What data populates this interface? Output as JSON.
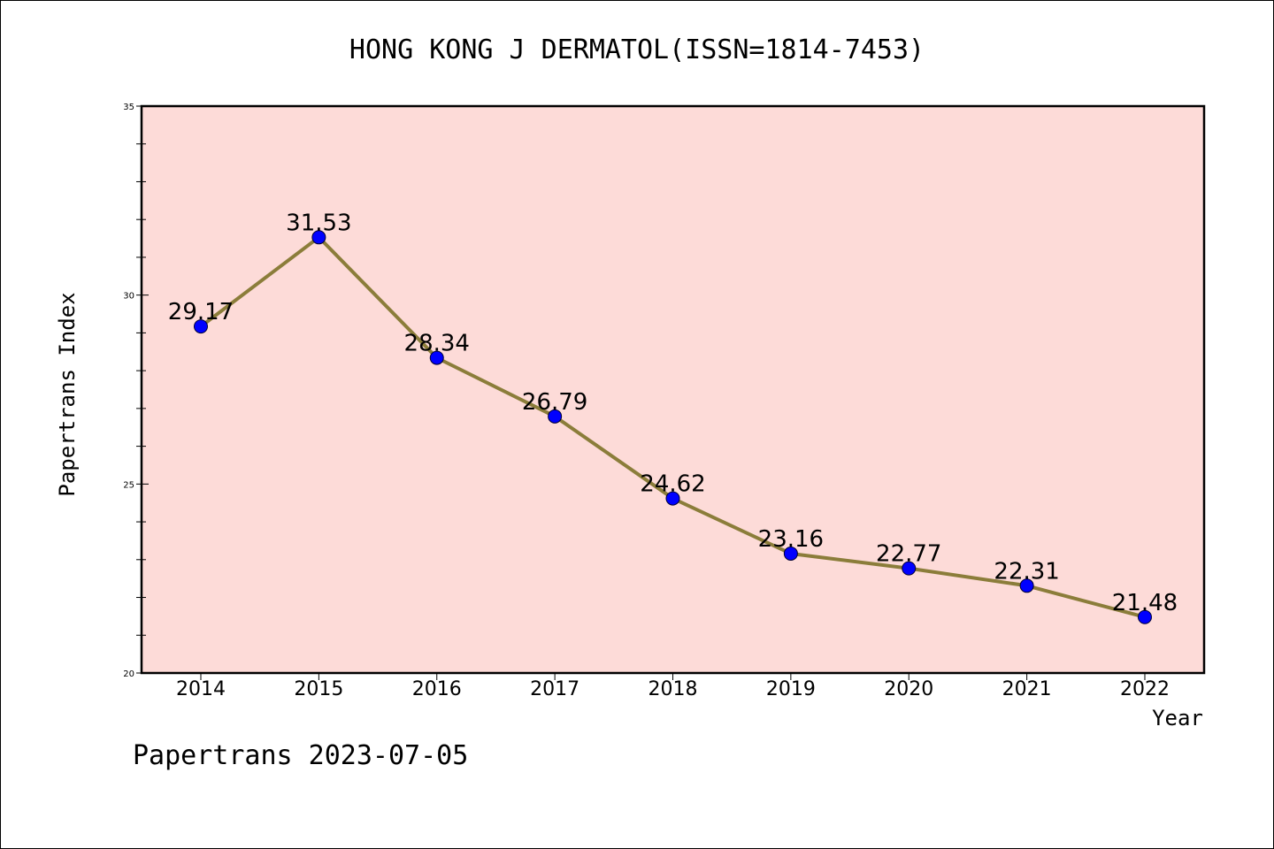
{
  "chart_data": {
    "type": "line",
    "title": "HONG KONG J DERMATOL(ISSN=1814-7453)",
    "xlabel": "Year",
    "ylabel": "Papertrans Index",
    "categories": [
      "2014",
      "2015",
      "2016",
      "2017",
      "2018",
      "2019",
      "2020",
      "2021",
      "2022"
    ],
    "series": [
      {
        "values": [
          29.17,
          31.53,
          28.34,
          26.79,
          24.62,
          23.16,
          22.77,
          22.31,
          21.48
        ],
        "labels": [
          "29.17",
          "31.53",
          "28.34",
          "26.79",
          "24.62",
          "23.16",
          "22.77",
          "22.31",
          "21.48"
        ],
        "line_color": "#8b7d3a",
        "marker_color": "#0000ff"
      }
    ],
    "ylim": [
      20,
      35
    ],
    "yticks": [
      "20",
      "25",
      "30",
      "35"
    ],
    "grid": false,
    "plot_background": "#fddbd8"
  },
  "footer": {
    "text": "Papertrans 2023-07-05"
  }
}
